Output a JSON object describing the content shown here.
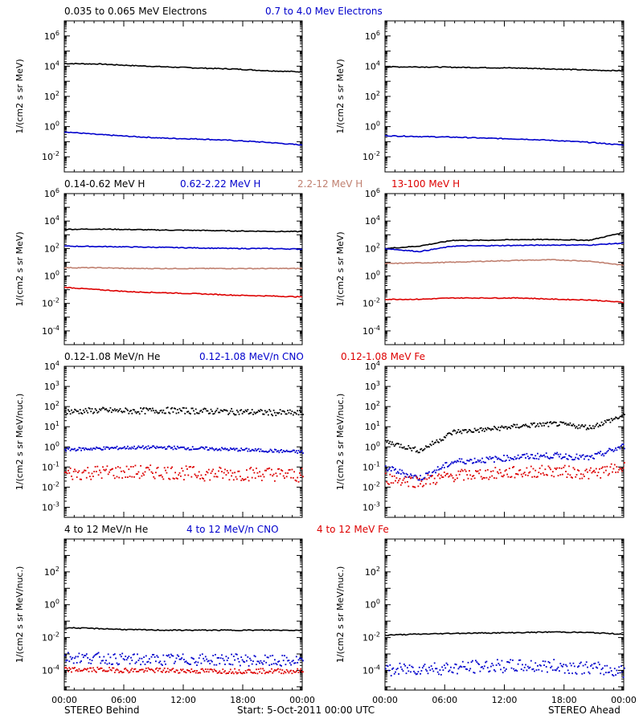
{
  "colors": {
    "black": "#000000",
    "blue": "#0000cc",
    "tan": "#c08070",
    "red": "#dd0000"
  },
  "footer": {
    "left": "STEREO Behind",
    "center": "Start:  5-Oct-2011 00:00 UTC",
    "right": "STEREO Ahead"
  },
  "chart_data": [
    {
      "id": "electrons",
      "type": "line",
      "log_y": true,
      "ylim_exp": [
        -3,
        7
      ],
      "y_tick_exps": [
        -2,
        0,
        2,
        4,
        6
      ],
      "ylabel": "1/(cm2 s sr MeV)",
      "legend": [
        {
          "text": "0.035 to 0.065 MeV Electrons",
          "color": "black"
        },
        {
          "text": "0.7 to 4.0 Mev Electrons",
          "color": "blue"
        }
      ],
      "x_ticks": [
        "00:00",
        "06:00",
        "12:00",
        "18:00",
        "00:00"
      ],
      "behind": [
        {
          "color": "black",
          "style": "line",
          "values": [
            15000,
            14000,
            11000,
            9000,
            7500,
            6500,
            5000,
            4200
          ]
        },
        {
          "color": "blue",
          "style": "line",
          "values": [
            0.45,
            0.3,
            0.22,
            0.17,
            0.15,
            0.12,
            0.09,
            0.06
          ]
        }
      ],
      "ahead": [
        {
          "color": "black",
          "style": "line",
          "values": [
            9000,
            9000,
            8500,
            8000,
            7500,
            6500,
            5500,
            5000
          ]
        },
        {
          "color": "blue",
          "style": "line",
          "values": [
            0.25,
            0.22,
            0.2,
            0.17,
            0.15,
            0.12,
            0.09,
            0.06
          ]
        }
      ]
    },
    {
      "id": "protons",
      "type": "line",
      "log_y": true,
      "ylim_exp": [
        -5,
        6
      ],
      "y_tick_exps": [
        -4,
        -2,
        0,
        2,
        4,
        6
      ],
      "ylabel": "1/(cm2 s sr MeV)",
      "legend": [
        {
          "text": "0.14-0.62 MeV H",
          "color": "black"
        },
        {
          "text": "0.62-2.22 MeV H",
          "color": "blue"
        },
        {
          "text": "2.2-12 MeV H",
          "color": "tan"
        },
        {
          "text": "13-100 MeV H",
          "color": "red"
        }
      ],
      "x_ticks": [
        "00:00",
        "06:00",
        "12:00",
        "18:00",
        "00:00"
      ],
      "behind": [
        {
          "color": "black",
          "style": "line",
          "values": [
            2500,
            2600,
            2400,
            2200,
            2100,
            1900,
            1800,
            1700
          ]
        },
        {
          "color": "blue",
          "style": "line",
          "values": [
            150,
            140,
            130,
            120,
            110,
            100,
            100,
            90
          ]
        },
        {
          "color": "tan",
          "style": "line",
          "values": [
            4,
            4,
            3.5,
            3.5,
            3.5,
            3.5,
            3.5,
            3.5
          ]
        },
        {
          "color": "red",
          "style": "line",
          "values": [
            0.15,
            0.1,
            0.07,
            0.06,
            0.05,
            0.04,
            0.035,
            0.03
          ]
        }
      ],
      "ahead": [
        {
          "color": "black",
          "style": "line",
          "values": [
            100,
            150,
            400,
            400,
            450,
            450,
            400,
            1500
          ]
        },
        {
          "color": "blue",
          "style": "line",
          "values": [
            100,
            60,
            150,
            160,
            170,
            180,
            180,
            250
          ]
        },
        {
          "color": "tan",
          "style": "line",
          "values": [
            8,
            9,
            10,
            12,
            14,
            15,
            12,
            6
          ]
        },
        {
          "color": "red",
          "style": "line",
          "values": [
            0.02,
            0.02,
            0.025,
            0.025,
            0.025,
            0.02,
            0.018,
            0.012
          ]
        }
      ]
    },
    {
      "id": "heavy-low",
      "type": "scatter",
      "log_y": true,
      "ylim_exp": [
        -3.5,
        4
      ],
      "y_tick_exps": [
        -3,
        -2,
        -1,
        0,
        1,
        2,
        3,
        4
      ],
      "ylabel": "1/(cm2 s sr MeV/nuc.)",
      "legend": [
        {
          "text": "0.12-1.08 MeV/n He",
          "color": "black"
        },
        {
          "text": "0.12-1.08 MeV/n CNO",
          "color": "blue"
        },
        {
          "text": "0.12-1.08 MeV Fe",
          "color": "red"
        }
      ],
      "x_ticks": [
        "00:00",
        "06:00",
        "12:00",
        "18:00",
        "00:00"
      ],
      "behind": [
        {
          "color": "black",
          "style": "dots",
          "values": [
            60,
            70,
            65,
            70,
            65,
            60,
            55,
            50
          ],
          "jitter": 0.15
        },
        {
          "color": "blue",
          "style": "dots",
          "values": [
            0.8,
            0.9,
            1.0,
            1.0,
            0.9,
            0.8,
            0.7,
            0.6
          ],
          "jitter": 0.08
        },
        {
          "color": "red",
          "style": "dots",
          "values": [
            0.05,
            0.06,
            0.06,
            0.06,
            0.05,
            0.05,
            0.05,
            0.04
          ],
          "jitter": 0.35
        }
      ],
      "ahead": [
        {
          "color": "black",
          "style": "dots",
          "values": [
            2,
            0.7,
            6,
            8,
            12,
            15,
            10,
            40
          ],
          "jitter": 0.12
        },
        {
          "color": "blue",
          "style": "dots",
          "values": [
            0.1,
            0.03,
            0.2,
            0.25,
            0.35,
            0.4,
            0.3,
            1.2
          ],
          "jitter": 0.15
        },
        {
          "color": "red",
          "style": "dots",
          "values": [
            0.03,
            0.02,
            0.04,
            0.05,
            0.06,
            0.07,
            0.05,
            0.1
          ],
          "jitter": 0.3
        }
      ]
    },
    {
      "id": "heavy-high",
      "type": "scatter",
      "log_y": true,
      "ylim_exp": [
        -5.2,
        4
      ],
      "y_tick_exps": [
        -4,
        -2,
        0,
        2
      ],
      "ylabel": "1/(cm2 s sr MeV/nuc.)",
      "legend": [
        {
          "text": "4 to 12 MeV/n He",
          "color": "black"
        },
        {
          "text": "4 to 12 MeV/n CNO",
          "color": "blue"
        },
        {
          "text": "4 to 12 MeV Fe",
          "color": "red"
        }
      ],
      "x_ticks": [
        "00:00",
        "06:00",
        "12:00",
        "18:00",
        "00:00"
      ],
      "behind": [
        {
          "color": "black",
          "style": "line",
          "values": [
            0.04,
            0.035,
            0.03,
            0.028,
            0.028,
            0.028,
            0.028,
            0.028
          ]
        },
        {
          "color": "blue",
          "style": "dots",
          "values": [
            0.0007,
            0.0006,
            0.0005,
            0.0005,
            0.0005,
            0.0005,
            0.0004,
            0.0004
          ],
          "jitter": 0.35
        },
        {
          "color": "red",
          "style": "dots",
          "values": [
            0.00012,
            0.00012,
            0.00011,
            0.00011,
            0.0001,
            0.0001,
            0.0001,
            0.0001
          ],
          "jitter": 0.15
        }
      ],
      "ahead": [
        {
          "color": "black",
          "style": "line",
          "values": [
            0.014,
            0.016,
            0.018,
            0.019,
            0.02,
            0.022,
            0.02,
            0.016
          ]
        },
        {
          "color": "blue",
          "style": "dots",
          "values": [
            0.0001,
            0.00015,
            0.00015,
            0.0002,
            0.0002,
            0.0002,
            0.00015,
            0.0001
          ],
          "jitter": 0.4
        }
      ]
    }
  ]
}
